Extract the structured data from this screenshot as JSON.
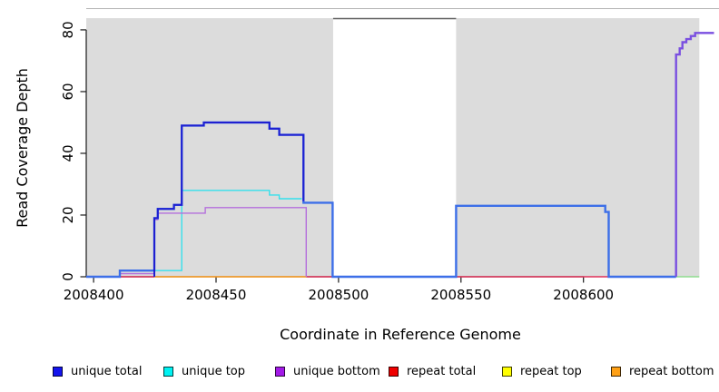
{
  "chart_data": {
    "type": "line",
    "title": "",
    "xlabel": "Coordinate in Reference Genome",
    "ylabel": "Read Coverage Depth",
    "xlim": [
      2008397,
      2008653.3
    ],
    "ylim": [
      0,
      83.8
    ],
    "x_ticks": [
      2008400,
      2008450,
      2008500,
      2008550,
      2008600
    ],
    "y_ticks": [
      0,
      20,
      40,
      60,
      80
    ],
    "grid": false,
    "plot_background": "#ffffff",
    "shaded_regions": [
      {
        "name": "covered-region-left",
        "x0": 2008397,
        "x1": 2008497.8,
        "color": "#DCDCDC"
      },
      {
        "name": "covered-region-right",
        "x0": 2008548,
        "x1": 2008647.3,
        "color": "#DCDCDC"
      }
    ],
    "series": [
      {
        "name": "baseline-left-violet",
        "color": "#8A7CF0",
        "width": 1.8,
        "points": [
          [
            2008397,
            0
          ],
          [
            2008410.7,
            0
          ]
        ]
      },
      {
        "name": "repeat-total-seg1",
        "color": "#E03058",
        "width": 1.5,
        "points": [
          [
            2008410.7,
            0
          ],
          [
            2008424.8,
            0
          ]
        ]
      },
      {
        "name": "repeat-total-seg2",
        "color": "#E03058",
        "width": 1.5,
        "points": [
          [
            2008487,
            0
          ],
          [
            2008497.8,
            0
          ]
        ]
      },
      {
        "name": "repeat-total-seg3",
        "color": "#E03058",
        "width": 1.5,
        "points": [
          [
            2008548,
            0
          ],
          [
            2008610.3,
            0
          ]
        ]
      },
      {
        "name": "repeat-bottom",
        "color": "#FF9D1E",
        "width": 1.6,
        "points": [
          [
            2008424.8,
            0
          ],
          [
            2008487,
            0
          ]
        ]
      },
      {
        "name": "baseline-gap-violet",
        "color": "#7B6CEF",
        "width": 1.8,
        "points": [
          [
            2008497.8,
            0
          ],
          [
            2008548,
            0
          ]
        ]
      },
      {
        "name": "baseline-right-violet",
        "color": "#7B6CEF",
        "width": 1.8,
        "points": [
          [
            2008610.3,
            0
          ],
          [
            2008637.8,
            0
          ]
        ]
      },
      {
        "name": "baseline-green",
        "color": "#8FDC8F",
        "width": 1.6,
        "points": [
          [
            2008637.8,
            0
          ],
          [
            2008647.3,
            0
          ]
        ]
      },
      {
        "name": "unique-top",
        "color": "#35E0EC",
        "width": 1.4,
        "points": [
          [
            2008424.8,
            2
          ],
          [
            2008436,
            2
          ],
          [
            2008436,
            28
          ],
          [
            2008471.8,
            28
          ],
          [
            2008471.8,
            26.5
          ],
          [
            2008475.8,
            26.5
          ],
          [
            2008475.8,
            25.3
          ],
          [
            2008485,
            25.3
          ]
        ]
      },
      {
        "name": "unique-bottom",
        "color": "#B46FDC",
        "width": 1.4,
        "points": [
          [
            2008410.7,
            1
          ],
          [
            2008424.8,
            1
          ],
          [
            2008424.8,
            18.5
          ],
          [
            2008426.2,
            18.5
          ],
          [
            2008426.2,
            20.6
          ],
          [
            2008445.6,
            20.6
          ],
          [
            2008445.6,
            22.4
          ],
          [
            2008486.8,
            22.4
          ],
          [
            2008486.8,
            0
          ]
        ]
      },
      {
        "name": "unique-total",
        "color": "#3D6FE8",
        "width": 2.4,
        "points": [
          [
            2008397,
            0
          ],
          [
            2008410.7,
            0
          ],
          [
            2008410.7,
            2
          ],
          [
            2008424.8,
            2
          ],
          [
            2008424.8,
            19
          ],
          [
            2008426.2,
            19
          ],
          [
            2008426.2,
            22
          ],
          [
            2008432.8,
            22
          ],
          [
            2008432.8,
            23.3
          ],
          [
            2008436,
            23.3
          ],
          [
            2008436,
            49
          ],
          [
            2008445,
            49
          ],
          [
            2008445,
            50
          ],
          [
            2008471.8,
            50
          ],
          [
            2008471.8,
            48
          ],
          [
            2008475.8,
            48
          ],
          [
            2008475.8,
            46
          ],
          [
            2008485.7,
            46
          ],
          [
            2008485.7,
            24
          ],
          [
            2008497.6,
            24
          ],
          [
            2008497.6,
            0
          ],
          [
            2008548,
            0
          ],
          [
            2008548,
            23
          ],
          [
            2008608.9,
            23
          ],
          [
            2008608.9,
            21
          ],
          [
            2008610.3,
            21
          ],
          [
            2008610.3,
            0
          ],
          [
            2008637.8,
            0
          ]
        ]
      },
      {
        "name": "unique-total-dark",
        "color": "#1F1FD1",
        "width": 2,
        "points": [
          [
            2008424.8,
            0
          ],
          [
            2008424.8,
            19
          ],
          [
            2008426.2,
            19
          ],
          [
            2008426.2,
            22
          ],
          [
            2008432.8,
            22
          ],
          [
            2008432.8,
            23.3
          ],
          [
            2008436,
            23.3
          ],
          [
            2008436,
            49
          ],
          [
            2008445,
            49
          ],
          [
            2008445,
            50
          ],
          [
            2008471.8,
            50
          ],
          [
            2008471.8,
            48
          ],
          [
            2008475.8,
            48
          ],
          [
            2008475.8,
            46
          ],
          [
            2008485.7,
            46
          ],
          [
            2008485.7,
            24.5
          ]
        ]
      },
      {
        "name": "right-spike-violet",
        "color": "#7A4FE0",
        "width": 2.4,
        "points": [
          [
            2008637.8,
            0
          ],
          [
            2008637.8,
            72
          ],
          [
            2008639.3,
            72
          ],
          [
            2008639.3,
            74
          ],
          [
            2008640.4,
            74
          ],
          [
            2008640.4,
            76
          ],
          [
            2008642,
            76
          ],
          [
            2008642,
            77
          ],
          [
            2008643.8,
            77
          ],
          [
            2008643.8,
            78
          ],
          [
            2008645.6,
            78
          ],
          [
            2008645.6,
            79
          ],
          [
            2008653.3,
            79
          ]
        ]
      }
    ],
    "legend": {
      "position": "bottom",
      "items": [
        {
          "label": "unique total",
          "color": "#1414EE"
        },
        {
          "label": "unique top",
          "color": "#00F2F2"
        },
        {
          "label": "unique bottom",
          "color": "#A31AE8"
        },
        {
          "label": "repeat total",
          "color": "#F00000"
        },
        {
          "label": "repeat top",
          "color": "#FFFF00"
        },
        {
          "label": "repeat bottom",
          "color": "#FFA015"
        }
      ]
    }
  }
}
